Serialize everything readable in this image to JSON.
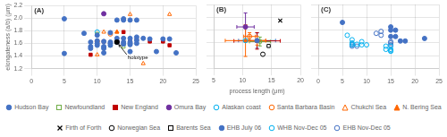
{
  "chart_data": [
    {
      "type": "scatter",
      "title": "(A)",
      "ylabel": "elongateness (a/b) (μm)",
      "xlim": [
        0,
        25
      ],
      "ylim": [
        1.2,
        2.2
      ],
      "xticks": [
        0,
        5,
        10,
        15,
        20,
        25
      ],
      "yticks": [
        1.2,
        1.4,
        1.6,
        1.8,
        {
          "value": 2,
          "label": "2.0"
        },
        2.2
      ],
      "grid": true,
      "legend": "bottom",
      "annotations": [
        {
          "text": "holotype",
          "x": 13,
          "y": 1.62,
          "color": "#000000"
        }
      ],
      "series": [
        {
          "name": "Hudson Bay",
          "color": "#4472C4",
          "marker": "circle",
          "x": [
            5,
            5,
            8,
            9,
            9,
            9,
            10,
            10,
            10,
            10,
            11,
            11,
            11,
            11,
            12,
            12,
            12,
            12,
            13,
            13,
            13,
            14,
            14,
            14,
            14,
            14,
            15,
            15,
            15,
            15,
            15,
            15,
            16,
            16,
            16,
            16,
            17,
            18,
            19,
            20,
            21,
            22
          ],
          "values": [
            1.99,
            1.44,
            1.76,
            1.62,
            1.55,
            1.52,
            1.73,
            1.64,
            1.6,
            1.57,
            1.63,
            1.55,
            1.52,
            1.45,
            1.77,
            1.62,
            1.6,
            1.57,
            1.97,
            1.68,
            1.62,
            1.99,
            1.97,
            1.68,
            1.62,
            1.59,
            1.97,
            1.68,
            1.62,
            1.6,
            1.58,
            1.47,
            1.97,
            1.7,
            1.65,
            1.6,
            1.68,
            1.67,
            1.47,
            1.67,
            1.67,
            1.45
          ]
        },
        {
          "name": "Newfoundland",
          "color": "#70AD47",
          "marker": "square-open",
          "x": [
            10,
            12,
            13,
            14,
            15
          ],
          "values": [
            1.75,
            1.57,
            1.65,
            1.55,
            1.6
          ]
        },
        {
          "name": "New England",
          "color": "#C00000",
          "marker": "square",
          "x": [
            9,
            11,
            14,
            15,
            18,
            20,
            21
          ],
          "values": [
            1.42,
            1.63,
            1.78,
            1.63,
            1.63,
            1.63,
            1.57
          ]
        },
        {
          "name": "Omura Bay",
          "color": "#7030A0",
          "marker": "circle",
          "x": [
            11,
            13
          ],
          "values": [
            2.07,
            1.63
          ]
        },
        {
          "name": "Alaskan coast",
          "color": "#00B0F0",
          "marker": "circle-open",
          "x": [
            10
          ],
          "values": [
            1.78
          ]
        },
        {
          "name": "Santa Barbara Basin",
          "color": "#FF6600",
          "marker": "circle-open",
          "x": [
            10,
            12
          ],
          "values": [
            1.63,
            1.75
          ]
        },
        {
          "name": "Chukchi Sea",
          "color": "#FF6600",
          "marker": "triangle-open",
          "x": [
            10,
            11,
            13,
            14,
            15,
            16,
            17,
            21
          ],
          "values": [
            1.42,
            1.78,
            1.78,
            1.63,
            2.06,
            1.68,
            1.28,
            2.06
          ]
        },
        {
          "name": "N. Bering Sea",
          "color": "#FF6600",
          "marker": "triangle",
          "x": [
            13,
            15
          ],
          "values": [
            1.78,
            1.65
          ]
        }
      ]
    },
    {
      "type": "scatter",
      "title": "(B)",
      "xlabel": "process length (μm)",
      "xlim": [
        5,
        20
      ],
      "ylim": [
        1.2,
        2.2
      ],
      "xticks": [
        5,
        10,
        15,
        20
      ],
      "yticks": [
        1.2,
        1.4,
        1.6,
        1.8,
        {
          "value": 2,
          "label": "2.0"
        },
        2.2
      ],
      "grid": true,
      "legend": "bottom",
      "tick_labels": "x",
      "series": [
        {
          "name": "Omura Bay",
          "color": "#7030A0",
          "marker": "circle",
          "x": [
            10.5
          ],
          "values": [
            1.85
          ],
          "xerr": [
            1.5
          ],
          "yerr": [
            0.22
          ]
        },
        {
          "name": "Santa Barbara Basin",
          "color": "#FF6600",
          "marker": "circle-open",
          "x": [
            11.2
          ],
          "values": [
            1.7
          ],
          "xerr": [
            1.0
          ],
          "yerr": [
            0.06
          ]
        },
        {
          "name": "Alaskan coast",
          "color": "#00B0F0",
          "marker": "circle-open",
          "x": [
            10.5
          ],
          "values": [
            1.635
          ],
          "xerr": [
            0
          ],
          "yerr": [
            0
          ]
        },
        {
          "name": "Hudson Bay",
          "color": "#4472C4",
          "marker": "circle",
          "x": [
            12.5
          ],
          "values": [
            1.635
          ],
          "xerr": [
            3.2
          ],
          "yerr": [
            0.12
          ]
        },
        {
          "name": "Newfoundland",
          "color": "#70AD47",
          "marker": "square-open",
          "x": [
            13.0
          ],
          "values": [
            1.62
          ],
          "xerr": [
            1.8
          ],
          "yerr": [
            0.07
          ]
        },
        {
          "name": "New England",
          "color": "#C00000",
          "marker": "square",
          "x": [
            12.5
          ],
          "values": [
            1.63
          ],
          "xerr": [
            4.0
          ],
          "yerr": [
            0.13
          ]
        },
        {
          "name": "N. Bering Sea",
          "color": "#FF6600",
          "marker": "triangle",
          "x": [
            12.5
          ],
          "values": [
            1.635
          ],
          "xerr": [
            1.5
          ],
          "yerr": [
            0.07
          ]
        },
        {
          "name": "Chukchi Sea",
          "color": "#FF6600",
          "marker": "triangle-open",
          "x": [
            10.5
          ],
          "values": [
            1.635
          ],
          "xerr": [
            3.5
          ],
          "yerr": [
            0.25
          ]
        },
        {
          "name": "Firth of Forth",
          "color": "#000000",
          "marker": "cross",
          "x": [
            16.5
          ],
          "values": [
            1.95
          ],
          "xerr": [
            0
          ],
          "yerr": [
            0
          ]
        },
        {
          "name": "Norwegian Sea",
          "color": "#000000",
          "marker": "circle-open",
          "x": [
            13.5
          ],
          "values": [
            1.42
          ],
          "xerr": [
            0
          ],
          "yerr": [
            0
          ]
        },
        {
          "name": "Barents Sea",
          "color": "#000000",
          "marker": "square-open",
          "x": [
            14.5
          ],
          "values": [
            1.55
          ],
          "xerr": [
            0
          ],
          "yerr": [
            0
          ]
        }
      ]
    },
    {
      "type": "scatter",
      "title": "(C)",
      "xlim": [
        0,
        25
      ],
      "ylim": [
        1.2,
        2.2
      ],
      "xticks": [
        0,
        5,
        10,
        15,
        20,
        25
      ],
      "yticks": [
        1.2,
        1.4,
        1.6,
        1.8,
        {
          "value": 2,
          "label": "2.0"
        },
        2.2
      ],
      "grid": true,
      "legend": "bottom",
      "tick_labels": "x",
      "series": [
        {
          "name": "EHB July 06",
          "color": "#4472C4",
          "marker": "circle",
          "x": [
            5,
            15,
            15,
            15,
            16,
            16,
            17,
            18,
            22
          ],
          "values": [
            1.92,
            1.85,
            1.8,
            1.7,
            1.8,
            1.7,
            1.63,
            1.63,
            1.67
          ]
        },
        {
          "name": "WHB Nov-Dec 05",
          "color": "#00B0F0",
          "marker": "circle-open",
          "x": [
            6,
            7,
            7,
            7,
            8,
            9,
            9,
            10,
            14,
            14,
            15,
            15,
            15,
            15
          ],
          "values": [
            1.72,
            1.65,
            1.6,
            1.57,
            1.58,
            1.62,
            1.57,
            1.57,
            1.55,
            1.5,
            1.55,
            1.5,
            1.48,
            1.47
          ]
        },
        {
          "name": "EHB Nov-Dec 05",
          "color": "#4472C4",
          "marker": "circle-open",
          "x": [
            7,
            7,
            8,
            12,
            13,
            13,
            15,
            15,
            15
          ],
          "values": [
            1.58,
            1.55,
            1.55,
            1.75,
            1.78,
            1.72,
            1.62,
            1.6,
            1.57
          ]
        }
      ]
    }
  ]
}
